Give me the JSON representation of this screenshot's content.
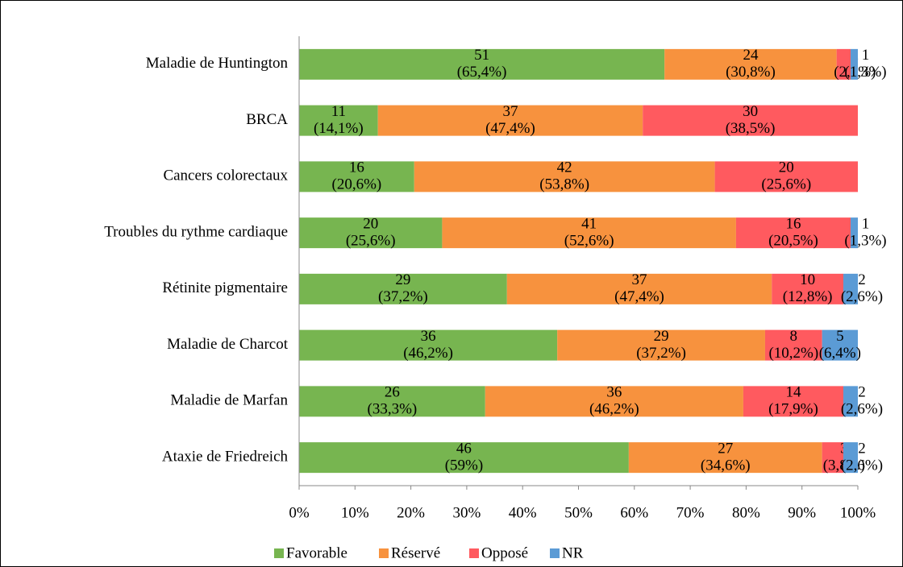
{
  "chart_data": {
    "type": "bar",
    "orientation": "horizontal",
    "stacked": true,
    "categories": [
      "Maladie de Huntington",
      "BRCA",
      "Cancers colorectaux",
      "Troubles du rythme cardiaque",
      "Rétinite pigmentaire",
      "Maladie de Charcot",
      "Maladie de Marfan",
      "Ataxie de Friedreich"
    ],
    "series": [
      {
        "name": "Favorable",
        "color": "#77b550",
        "values": [
          65.4,
          14.1,
          20.6,
          25.6,
          37.2,
          46.2,
          33.3,
          59
        ],
        "counts": [
          51,
          11,
          16,
          20,
          29,
          36,
          26,
          46
        ],
        "value_labels": [
          "(65,4%)",
          "(14,1%)",
          "(20,6%)",
          "(25,6%)",
          "(37,2%)",
          "(46,2%)",
          "(33,3%)",
          "(59%)"
        ]
      },
      {
        "name": "Réservé",
        "color": "#f7923e",
        "values": [
          30.8,
          47.4,
          53.8,
          52.6,
          47.4,
          37.2,
          46.2,
          34.6
        ],
        "counts": [
          24,
          37,
          42,
          41,
          37,
          29,
          36,
          27
        ],
        "value_labels": [
          "(30,8%)",
          "(47,4%)",
          "(53,8%)",
          "(52,6%)",
          "(47,4%)",
          "(37,2%)",
          "(46,2%)",
          "(34,6%)"
        ]
      },
      {
        "name": "Opposé",
        "color": "#ff5a5f",
        "values": [
          2.5,
          38.5,
          25.6,
          20.5,
          12.8,
          10.2,
          17.9,
          3.8
        ],
        "counts": [
          2,
          30,
          20,
          16,
          10,
          8,
          14,
          3
        ],
        "value_labels": [
          "(2,5%)",
          "(38,5%)",
          "(25,6%)",
          "(20,5%)",
          "(12,8%)",
          "(10,2%)",
          "(17,9%)",
          "(3,8%)"
        ]
      },
      {
        "name": "NR",
        "color": "#5b9bd5",
        "values": [
          1.3,
          null,
          null,
          1.3,
          2.6,
          6.4,
          2.6,
          2.6
        ],
        "counts": [
          1,
          null,
          null,
          1,
          2,
          5,
          2,
          2
        ],
        "value_labels": [
          "(1,3%)",
          null,
          null,
          "(1,3%)",
          "(2,6%)",
          "(6,4%)",
          "(2,6%)",
          "(2,6%)"
        ]
      }
    ],
    "xlim": [
      0,
      100
    ],
    "xticks": [
      {
        "value": 0,
        "label": "0%"
      },
      {
        "value": 10,
        "label": "10%"
      },
      {
        "value": 20,
        "label": "20%"
      },
      {
        "value": 30,
        "label": "30%"
      },
      {
        "value": 40,
        "label": "40%"
      },
      {
        "value": 50,
        "label": "50%"
      },
      {
        "value": 60,
        "label": "60%"
      },
      {
        "value": 70,
        "label": "70%"
      },
      {
        "value": 80,
        "label": "80%"
      },
      {
        "value": 90,
        "label": "90%"
      },
      {
        "value": 100,
        "label": "100%"
      }
    ],
    "legend": "bottom"
  }
}
